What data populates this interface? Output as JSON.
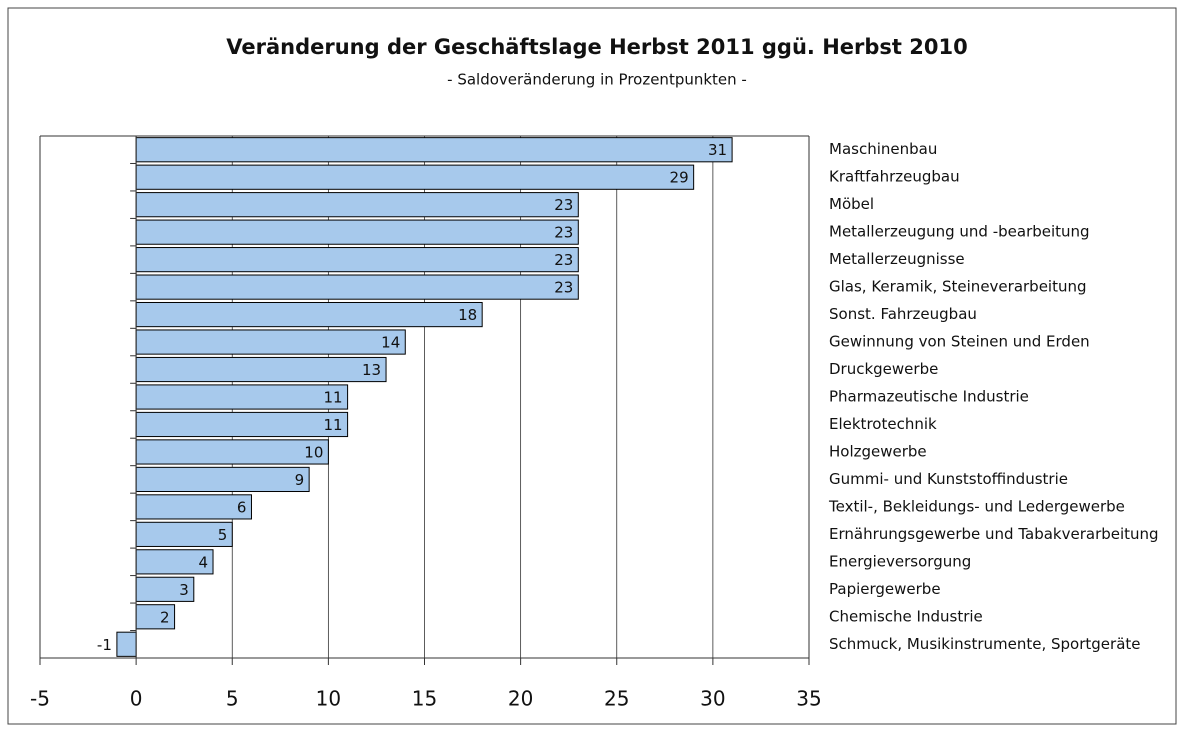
{
  "chart_data": {
    "type": "bar",
    "orientation": "horizontal",
    "title": "Veränderung der Geschäftslage Herbst 2011 ggü. Herbst 2010",
    "subtitle": "- Saldoveränderung in Prozentpunkten -",
    "categories": [
      "Maschinenbau",
      "Kraftfahrzeugbau",
      "Möbel",
      "Metallerzeugung und -bearbeitung",
      "Metallerzeugnisse",
      "Glas, Keramik, Steineverarbeitung",
      "Sonst. Fahrzeugbau",
      "Gewinnung von Steinen und Erden",
      "Druckgewerbe",
      "Pharmazeutische Industrie",
      "Elektrotechnik",
      "Holzgewerbe",
      "Gummi- und Kunststoffindustrie",
      "Textil-, Bekleidungs- und Ledergewerbe",
      "Ernährungsgewerbe und Tabakverarbeitung",
      "Energieversorgung",
      "Papiergewerbe",
      "Chemische Industrie",
      "Schmuck, Musikinstrumente, Sportgeräte"
    ],
    "values": [
      31,
      29,
      23,
      23,
      23,
      23,
      18,
      14,
      13,
      11,
      11,
      10,
      9,
      6,
      5,
      4,
      3,
      2,
      -1
    ],
    "color": "#a7c9ec",
    "xlim": [
      -5,
      35
    ],
    "xticks": [
      -5,
      0,
      5,
      10,
      15,
      20,
      25,
      30,
      35
    ],
    "grid": true
  }
}
